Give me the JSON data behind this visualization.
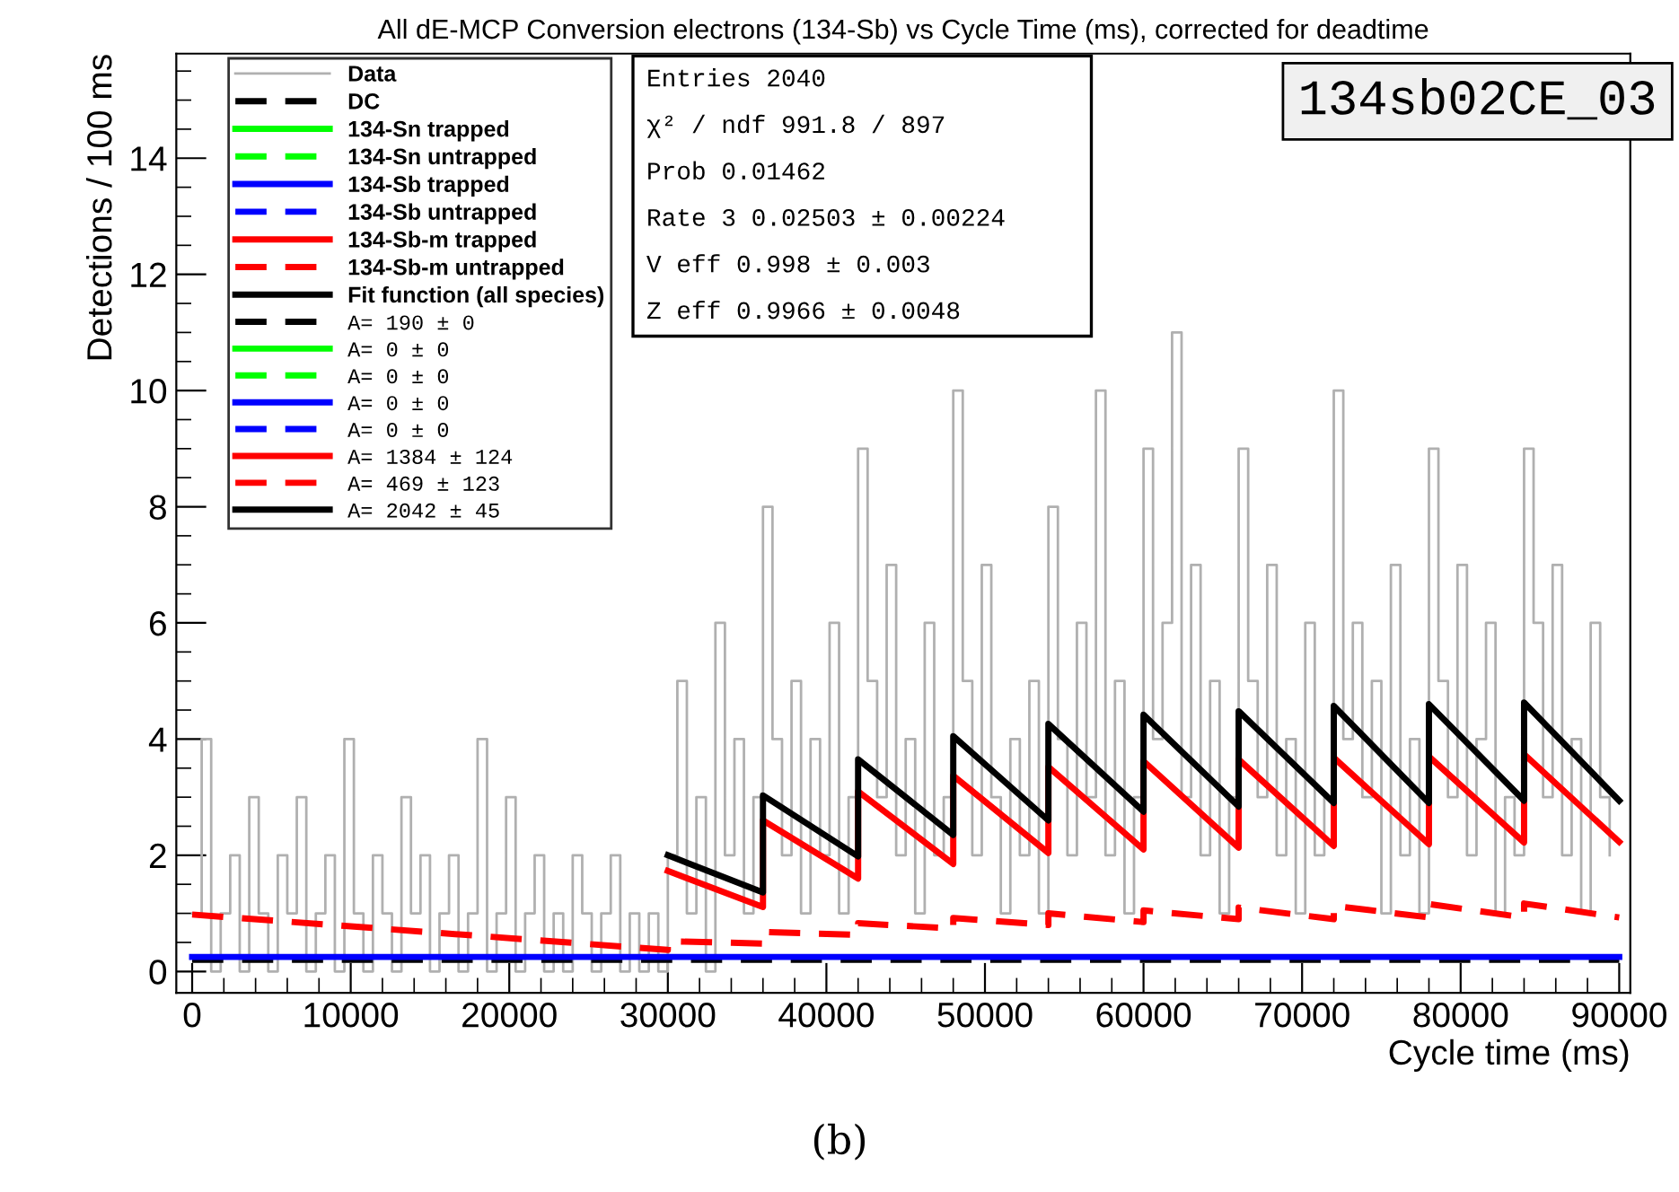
{
  "chart_data": {
    "type": "line",
    "title": "All dE-MCP Conversion electrons (134-Sb) vs Cycle Time (ms), corrected for deadtime",
    "xlabel": "Cycle time (ms)",
    "ylabel": "Detections / 100 ms",
    "xlim": [
      -1000,
      90700
    ],
    "ylim": [
      -0.37,
      15.8
    ],
    "xticks": [
      0,
      10000,
      20000,
      30000,
      40000,
      50000,
      60000,
      70000,
      80000,
      90000
    ],
    "yticks": [
      0,
      2,
      4,
      6,
      8,
      10,
      12,
      14
    ],
    "grid": false,
    "legend": "top left",
    "marker": "none",
    "annotations": [
      "134sb02CE_03",
      "Entries 2040",
      "χ² / ndf 991.8 / 897",
      "Prob 0.01462",
      "Rate 3 0.02503 ± 0.00224",
      "V eff 0.998 ± 0.003",
      "Z eff 0.9966 ± 0.0048",
      "A= 190 ± 0",
      "A= 0 ± 0",
      "A= 0 ± 0",
      "A= 0 ± 0",
      "A= 0 ± 0",
      "A= 1384 ± 124",
      "A= 469 ± 123",
      "A= 2042 ± 45",
      "(b)"
    ],
    "series": [
      {
        "name": "Data",
        "type": "step",
        "color": "#b0b0b0",
        "line_style": "solid",
        "x": [
          0,
          600,
          1200,
          1800,
          2400,
          3000,
          3600,
          4200,
          4800,
          5400,
          6000,
          6600,
          7200,
          7800,
          8400,
          9000,
          9600,
          10200,
          10800,
          11400,
          12000,
          12600,
          13200,
          13800,
          14400,
          15000,
          15600,
          16200,
          16800,
          17400,
          18000,
          18600,
          19200,
          19800,
          20400,
          21000,
          21600,
          22200,
          22800,
          23400,
          24000,
          24600,
          25200,
          25800,
          26400,
          27000,
          27600,
          28200,
          28800,
          29400,
          30000,
          30600,
          31200,
          31800,
          32400,
          33000,
          33600,
          34200,
          34800,
          35400,
          36000,
          36600,
          37200,
          37800,
          38400,
          39000,
          39600,
          40200,
          40800,
          41400,
          42000,
          42600,
          43200,
          43800,
          44400,
          45000,
          45600,
          46200,
          46800,
          47400,
          48000,
          48600,
          49200,
          49800,
          50400,
          51000,
          51600,
          52200,
          52800,
          53400,
          54000,
          54600,
          55200,
          55800,
          56400,
          57000,
          57600,
          58200,
          58800,
          59400,
          60000,
          60600,
          61200,
          61800,
          62400,
          63000,
          63600,
          64200,
          64800,
          65400,
          66000,
          66600,
          67200,
          67800,
          68400,
          69000,
          69600,
          70200,
          70800,
          71400,
          72000,
          72600,
          73200,
          73800,
          74400,
          75000,
          75600,
          76200,
          76800,
          77400,
          78000,
          78600,
          79200,
          79800,
          80400,
          81000,
          81600,
          82200,
          82800,
          83400,
          84000,
          84600,
          85200,
          85800,
          86400,
          87000,
          87600,
          88200,
          88800,
          89400
        ],
        "values": [
          1,
          4,
          0,
          1,
          2,
          0,
          3,
          1,
          0,
          2,
          1,
          3,
          0,
          1,
          2,
          0,
          4,
          1,
          0,
          2,
          1,
          0,
          3,
          1,
          2,
          0,
          1,
          2,
          0,
          1,
          4,
          0,
          1,
          3,
          0,
          1,
          2,
          0,
          1,
          0,
          2,
          1,
          0,
          1,
          2,
          0,
          1,
          0,
          1,
          0,
          2,
          5,
          1,
          3,
          0,
          6,
          2,
          4,
          1,
          3,
          8,
          4,
          2,
          5,
          1,
          4,
          2,
          6,
          1,
          3,
          9,
          5,
          3,
          7,
          2,
          4,
          1,
          6,
          2,
          3,
          10,
          5,
          2,
          7,
          3,
          1,
          4,
          2,
          5,
          1,
          8,
          4,
          2,
          6,
          3,
          10,
          2,
          5,
          1,
          3,
          9,
          4,
          6,
          11,
          3,
          7,
          2,
          5,
          1,
          3,
          9,
          5,
          3,
          7,
          2,
          4,
          1,
          6,
          2,
          3,
          10,
          4,
          6,
          3,
          5,
          1,
          7,
          2,
          4,
          1,
          9,
          5,
          3,
          7,
          2,
          4,
          6,
          1,
          3,
          2,
          9,
          6,
          3,
          7,
          2,
          4,
          1,
          6,
          3,
          2
        ]
      },
      {
        "name": "DC",
        "color": "#000000",
        "line_style": "dashed",
        "x": [
          0,
          90000
        ],
        "values": [
          0.2,
          0.2
        ]
      },
      {
        "name": "134-Sn trapped",
        "color": "#00ff00",
        "line_style": "solid"
      },
      {
        "name": "134-Sn untrapped",
        "color": "#00ff00",
        "line_style": "dashed"
      },
      {
        "name": "134-Sb trapped",
        "color": "#0000ff",
        "line_style": "solid",
        "x": [
          0,
          90000
        ],
        "values": [
          0.25,
          0.25
        ]
      },
      {
        "name": "134-Sb untrapped",
        "color": "#0000ff",
        "line_style": "dashed"
      },
      {
        "name": "134-Sb-m trapped",
        "color": "#ff0000",
        "line_style": "solid",
        "x": [
          30000,
          36000,
          36000,
          42000,
          42000,
          48000,
          48000,
          54000,
          54000,
          60000,
          60000,
          66000,
          66000,
          72000,
          72000,
          78000,
          78000,
          84000,
          84000,
          90000
        ],
        "values": [
          1.73,
          1.11,
          2.6,
          1.6,
          3.1,
          1.85,
          3.37,
          2.04,
          3.52,
          2.1,
          3.62,
          2.13,
          3.65,
          2.16,
          3.68,
          2.19,
          3.7,
          2.22,
          3.74,
          2.23
        ]
      },
      {
        "name": "134-Sb-m untrapped",
        "color": "#ff0000",
        "line_style": "dashed",
        "x": [
          0,
          30000,
          30000,
          36000,
          36000,
          42000,
          42000,
          48000,
          48000,
          54000,
          54000,
          60000,
          60000,
          66000,
          66000,
          72000,
          72000,
          78000,
          78000,
          84000,
          84000,
          90000
        ],
        "values": [
          0.98,
          0.37,
          0.52,
          0.48,
          0.68,
          0.63,
          0.83,
          0.74,
          0.92,
          0.8,
          1.0,
          0.85,
          1.05,
          0.9,
          1.1,
          0.9,
          1.13,
          0.93,
          1.16,
          0.93,
          1.17,
          0.93
        ]
      },
      {
        "name": "Fit function (all species)",
        "color": "#000000",
        "line_style": "solid",
        "x": [
          30000,
          36000,
          36000,
          42000,
          42000,
          48000,
          48000,
          54000,
          54000,
          60000,
          60000,
          66000,
          66000,
          72000,
          72000,
          78000,
          78000,
          84000,
          84000,
          90000
        ],
        "values": [
          2.0,
          1.36,
          3.03,
          1.98,
          3.65,
          2.35,
          4.05,
          2.6,
          4.26,
          2.75,
          4.42,
          2.84,
          4.48,
          2.9,
          4.57,
          2.9,
          4.6,
          2.94,
          4.63,
          2.94
        ]
      }
    ]
  }
}
